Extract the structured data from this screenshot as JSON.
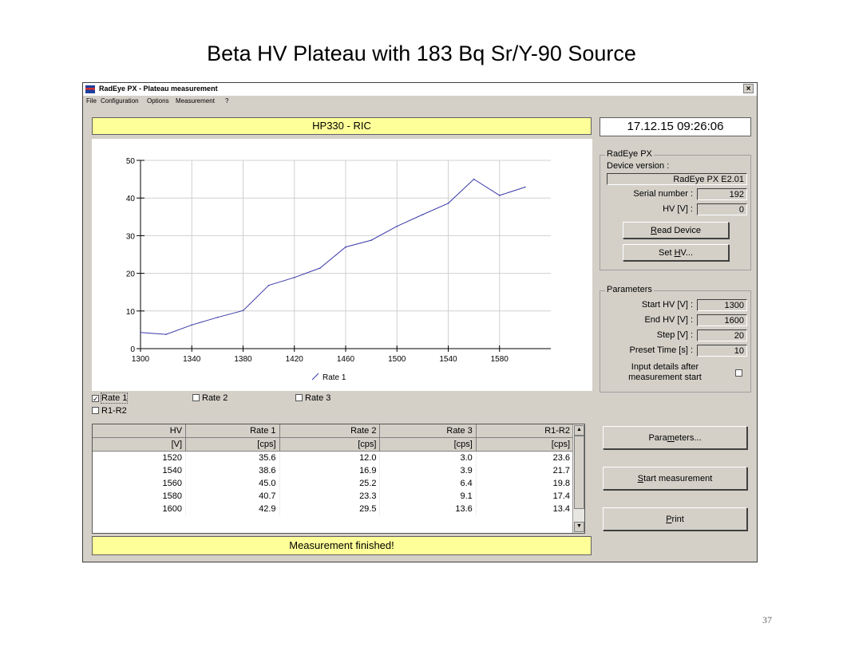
{
  "slide": {
    "title": "Beta HV Plateau with 183 Bq Sr/Y-90 Source",
    "page_number": "37"
  },
  "window": {
    "title": "RadEye PX - Plateau measurement",
    "close_glyph": "×",
    "menu": [
      "File",
      "Configuration",
      "Options",
      "Measurement",
      "?"
    ],
    "device_banner": "HP330 - RIC",
    "datetime": "17.12.15  09:26:06",
    "status": "Measurement finished!"
  },
  "chart_data": {
    "type": "line",
    "series": [
      {
        "name": "Rate 1",
        "x": [
          1300,
          1320,
          1340,
          1360,
          1380,
          1400,
          1420,
          1440,
          1460,
          1480,
          1500,
          1520,
          1540,
          1560,
          1580,
          1600
        ],
        "y": [
          4.3,
          3.8,
          6.3,
          8.3,
          10.1,
          16.8,
          18.9,
          21.4,
          27.0,
          28.8,
          32.5,
          35.6,
          38.6,
          45.0,
          40.7,
          42.9
        ],
        "color": "#3a3aa8"
      }
    ],
    "xticks": [
      "1300",
      "1340",
      "1380",
      "1420",
      "1460",
      "1500",
      "1540",
      "1580"
    ],
    "yticks": [
      "0",
      "10",
      "20",
      "30",
      "40",
      "50"
    ],
    "xlim": [
      1300,
      1620
    ],
    "ylim": [
      0,
      50
    ],
    "grid": true,
    "legend": "bottom-center"
  },
  "checkboxes": [
    {
      "label": "Rate 1",
      "checked": true
    },
    {
      "label": "Rate 2",
      "checked": false
    },
    {
      "label": "Rate 3",
      "checked": false
    },
    {
      "label": "R1-R2",
      "checked": false
    }
  ],
  "check_glyph": "✓",
  "table": {
    "headers": [
      "HV",
      "Rate 1",
      "Rate 2",
      "Rate 3",
      "R1-R2"
    ],
    "units": [
      "[V]",
      "[cps]",
      "[cps]",
      "[cps]",
      "[cps]"
    ],
    "rows": [
      [
        "1520",
        "35.6",
        "12.0",
        "3.0",
        "23.6"
      ],
      [
        "1540",
        "38.6",
        "16.9",
        "3.9",
        "21.7"
      ],
      [
        "1560",
        "45.0",
        "25.2",
        "6.4",
        "19.8"
      ],
      [
        "1580",
        "40.7",
        "23.3",
        "9.1",
        "17.4"
      ],
      [
        "1600",
        "42.9",
        "29.5",
        "13.6",
        "13.4"
      ]
    ],
    "scroll_up_glyph": "▲",
    "scroll_down_glyph": "▼"
  },
  "device": {
    "group_title": "RadEye PX",
    "version_label": "Device version :",
    "version_value": "RadEye PX E2.01",
    "serial_label": "Serial number :",
    "serial_value": "192",
    "hv_label": "HV [V] :",
    "hv_value": "0",
    "read_button": {
      "mnemonic": "R",
      "rest": "ead Device"
    },
    "set_hv_button": {
      "before": "Set ",
      "mnemonic": "H",
      "rest": "V..."
    }
  },
  "parameters": {
    "group_title": "Parameters",
    "fields": [
      {
        "label": "Start HV [V] :",
        "value": "1300"
      },
      {
        "label": "End HV [V] :",
        "value": "1600"
      },
      {
        "label": "Step [V] :",
        "value": "20"
      },
      {
        "label": "Preset Time [s] :",
        "value": "10"
      }
    ],
    "input_details_line1": "Input details after",
    "input_details_line2": "measurement start"
  },
  "buttons": {
    "parameters": {
      "before": "Para",
      "mnemonic": "m",
      "rest": "eters..."
    },
    "start": {
      "before": "",
      "mnemonic": "S",
      "rest": "tart measurement"
    },
    "print": {
      "before": "",
      "mnemonic": "P",
      "rest": "rint"
    }
  }
}
